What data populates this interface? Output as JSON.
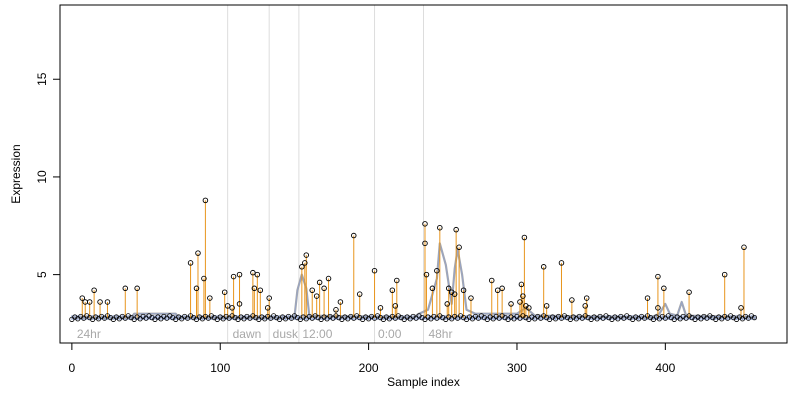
{
  "chart_data": {
    "type": "scatter",
    "title": "",
    "xlabel": "Sample index",
    "ylabel": "Expression",
    "xlim": [
      -8,
      482
    ],
    "ylim": [
      1.5,
      18.8
    ],
    "xticks": [
      0,
      100,
      200,
      300,
      400
    ],
    "yticks": [
      5,
      10,
      15
    ],
    "grid": false,
    "baseline": 2.8,
    "colors": {
      "stem": "#e8951c",
      "baseline": "#8fa3d6",
      "smooth": "#a0a0a0",
      "separator": "#dddddd",
      "point_edge": "#000000",
      "axis": "#000000",
      "region_label": "#a8a8a8"
    },
    "separators": [
      105,
      133,
      153,
      204,
      237
    ],
    "regions": [
      {
        "label": "24hr",
        "x": 2
      },
      {
        "label": "dawn",
        "x": 107
      },
      {
        "label": "dusk",
        "x": 134
      },
      {
        "label": "12:00",
        "x": 154
      },
      {
        "label": "0:00",
        "x": 205
      },
      {
        "label": "48hr",
        "x": 239
      }
    ],
    "baseline_bumps": [
      [
        0,
        2.8
      ],
      [
        40,
        2.8
      ],
      [
        42,
        3.0
      ],
      [
        70,
        3.0
      ],
      [
        72,
        2.8
      ],
      [
        150,
        2.8
      ],
      [
        152,
        4.2
      ],
      [
        155,
        5.0
      ],
      [
        158,
        4.3
      ],
      [
        160,
        2.9
      ],
      [
        230,
        2.8
      ],
      [
        234,
        3.0
      ],
      [
        240,
        3.2
      ],
      [
        246,
        4.8
      ],
      [
        248,
        6.6
      ],
      [
        252,
        5.5
      ],
      [
        256,
        3.5
      ],
      [
        258,
        5.3
      ],
      [
        260,
        6.3
      ],
      [
        263,
        5.0
      ],
      [
        266,
        3.2
      ],
      [
        272,
        3.0
      ],
      [
        300,
        3.0
      ],
      [
        306,
        3.3
      ],
      [
        312,
        2.9
      ],
      [
        390,
        2.8
      ],
      [
        396,
        3.0
      ],
      [
        400,
        3.5
      ],
      [
        403,
        3.0
      ],
      [
        408,
        2.9
      ],
      [
        411,
        3.6
      ],
      [
        414,
        2.9
      ],
      [
        461,
        2.8
      ]
    ],
    "spikes": [
      {
        "x": 7,
        "y": 3.8
      },
      {
        "x": 9,
        "y": 3.6
      },
      {
        "x": 12,
        "y": 3.6
      },
      {
        "x": 15,
        "y": 4.2
      },
      {
        "x": 19,
        "y": 3.6
      },
      {
        "x": 24,
        "y": 3.6
      },
      {
        "x": 36,
        "y": 4.3
      },
      {
        "x": 44,
        "y": 4.3
      },
      {
        "x": 80,
        "y": 5.6
      },
      {
        "x": 84,
        "y": 4.3
      },
      {
        "x": 85,
        "y": 6.1
      },
      {
        "x": 89,
        "y": 4.8
      },
      {
        "x": 90,
        "y": 8.8
      },
      {
        "x": 93,
        "y": 3.8
      },
      {
        "x": 103,
        "y": 4.1
      },
      {
        "x": 105,
        "y": 3.4
      },
      {
        "x": 108,
        "y": 3.3
      },
      {
        "x": 109,
        "y": 4.9
      },
      {
        "x": 113,
        "y": 5.0
      },
      {
        "x": 113,
        "y": 3.5
      },
      {
        "x": 122,
        "y": 5.1
      },
      {
        "x": 123,
        "y": 4.3
      },
      {
        "x": 125,
        "y": 5.0
      },
      {
        "x": 127,
        "y": 4.2
      },
      {
        "x": 132,
        "y": 3.3
      },
      {
        "x": 133,
        "y": 3.8
      },
      {
        "x": 155,
        "y": 5.4
      },
      {
        "x": 157,
        "y": 5.6
      },
      {
        "x": 158,
        "y": 6.0
      },
      {
        "x": 162,
        "y": 4.2
      },
      {
        "x": 165,
        "y": 3.9
      },
      {
        "x": 167,
        "y": 4.6
      },
      {
        "x": 170,
        "y": 4.3
      },
      {
        "x": 173,
        "y": 4.8
      },
      {
        "x": 178,
        "y": 3.2
      },
      {
        "x": 181,
        "y": 3.6
      },
      {
        "x": 190,
        "y": 7.0
      },
      {
        "x": 194,
        "y": 4.0
      },
      {
        "x": 204,
        "y": 5.2
      },
      {
        "x": 208,
        "y": 3.3
      },
      {
        "x": 216,
        "y": 4.2
      },
      {
        "x": 218,
        "y": 3.4
      },
      {
        "x": 219,
        "y": 4.7
      },
      {
        "x": 238,
        "y": 7.6
      },
      {
        "x": 238,
        "y": 6.6
      },
      {
        "x": 239,
        "y": 5.0
      },
      {
        "x": 243,
        "y": 4.3
      },
      {
        "x": 246,
        "y": 5.2
      },
      {
        "x": 248,
        "y": 7.4
      },
      {
        "x": 253,
        "y": 3.5
      },
      {
        "x": 254,
        "y": 4.3
      },
      {
        "x": 256,
        "y": 4.1
      },
      {
        "x": 258,
        "y": 4.0
      },
      {
        "x": 259,
        "y": 7.3
      },
      {
        "x": 261,
        "y": 6.4
      },
      {
        "x": 264,
        "y": 4.2
      },
      {
        "x": 269,
        "y": 3.8
      },
      {
        "x": 283,
        "y": 4.7
      },
      {
        "x": 287,
        "y": 4.2
      },
      {
        "x": 290,
        "y": 4.3
      },
      {
        "x": 296,
        "y": 3.5
      },
      {
        "x": 302,
        "y": 3.6
      },
      {
        "x": 303,
        "y": 4.5
      },
      {
        "x": 304,
        "y": 3.9
      },
      {
        "x": 305,
        "y": 6.9
      },
      {
        "x": 306,
        "y": 3.4
      },
      {
        "x": 308,
        "y": 3.3
      },
      {
        "x": 318,
        "y": 5.4
      },
      {
        "x": 320,
        "y": 3.4
      },
      {
        "x": 330,
        "y": 5.6
      },
      {
        "x": 337,
        "y": 3.7
      },
      {
        "x": 346,
        "y": 3.4
      },
      {
        "x": 347,
        "y": 3.8
      },
      {
        "x": 388,
        "y": 3.8
      },
      {
        "x": 395,
        "y": 4.9
      },
      {
        "x": 395,
        "y": 3.3
      },
      {
        "x": 399,
        "y": 4.3
      },
      {
        "x": 416,
        "y": 4.1
      },
      {
        "x": 440,
        "y": 5.0
      },
      {
        "x": 451,
        "y": 3.3
      },
      {
        "x": 453,
        "y": 6.4
      }
    ]
  }
}
